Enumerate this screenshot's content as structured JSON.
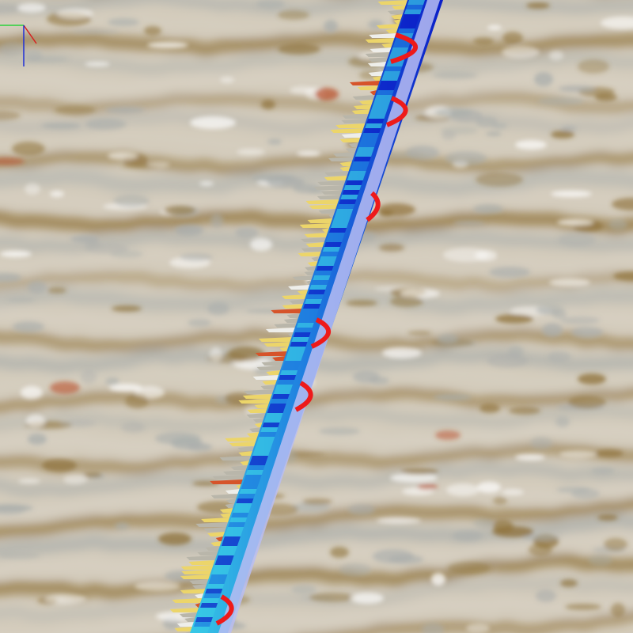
{
  "scene": {
    "background_colors": {
      "light": "#d8d1c4",
      "dark": "#8c6e34",
      "grey": "#a9adab",
      "red": "#b8451f"
    },
    "well_log_colors": {
      "track_dark": "#0b1ec8",
      "track_mid": "#1f7fe0",
      "track_cyan": "#38c8e6",
      "stripe": "#b9bdf2",
      "tick_yellow": "#ecd56a",
      "tick_grey": "#b9b6aa",
      "tick_red": "#d6542a",
      "curve_red": "#ee1a1a"
    },
    "axes": {
      "x_axis_color": "#2bd23b",
      "y_axis_color": "#d62020",
      "z_axis_color": "#1f2fd6"
    }
  }
}
